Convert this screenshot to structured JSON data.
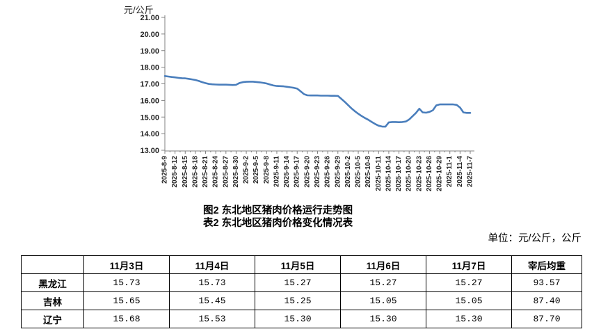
{
  "titles": {
    "figure": "图2  东北地区猪肉价格运行走势图",
    "table": "表2  东北地区猪肉价格变化情况表",
    "unit_note": "单位：元/公斤，公斤"
  },
  "colors": {
    "line": "#4a7ebc",
    "axis": "#808080",
    "text": "#262626",
    "table_border": "#000000"
  },
  "chart_data": {
    "type": "line",
    "title": "",
    "ylabel": "元/公斤",
    "ylim": [
      13,
      21
    ],
    "ytick_step": 1,
    "xtick_every": 3,
    "grid": false,
    "legend": null,
    "x": [
      "2025-8-9",
      "2025-8-10",
      "2025-8-11",
      "2025-8-12",
      "2025-8-13",
      "2025-8-14",
      "2025-8-15",
      "2025-8-16",
      "2025-8-17",
      "2025-8-18",
      "2025-8-19",
      "2025-8-20",
      "2025-8-21",
      "2025-8-22",
      "2025-8-23",
      "2025-8-24",
      "2025-8-25",
      "2025-8-26",
      "2025-8-27",
      "2025-8-28",
      "2025-8-29",
      "2025-8-30",
      "2025-8-31",
      "2025-9-1",
      "2025-9-2",
      "2025-9-3",
      "2025-9-4",
      "2025-9-5",
      "2025-9-6",
      "2025-9-7",
      "2025-9-8",
      "2025-9-9",
      "2025-9-10",
      "2025-9-11",
      "2025-9-12",
      "2025-9-13",
      "2025-9-14",
      "2025-9-15",
      "2025-9-16",
      "2025-9-17",
      "2025-9-18",
      "2025-9-19",
      "2025-9-20",
      "2025-9-21",
      "2025-9-22",
      "2025-9-23",
      "2025-9-24",
      "2025-9-25",
      "2025-9-26",
      "2025-9-27",
      "2025-9-28",
      "2025-9-29",
      "2025-9-30",
      "2025-10-1",
      "2025-10-2",
      "2025-10-3",
      "2025-10-4",
      "2025-10-5",
      "2025-10-6",
      "2025-10-7",
      "2025-10-8",
      "2025-10-9",
      "2025-10-10",
      "2025-10-11",
      "2025-10-12",
      "2025-10-13",
      "2025-10-14",
      "2025-10-15",
      "2025-10-16",
      "2025-10-17",
      "2025-10-18",
      "2025-10-19",
      "2025-10-20",
      "2025-10-21",
      "2025-10-22",
      "2025-10-23",
      "2025-10-24",
      "2025-10-25",
      "2025-10-26",
      "2025-10-27",
      "2025-10-28",
      "2025-10-29",
      "2025-10-30",
      "2025-10-31",
      "2025-11-1",
      "2025-11-2",
      "2025-11-3",
      "2025-11-4",
      "2025-11-5",
      "2025-11-6",
      "2025-11-7"
    ],
    "values": [
      17.47,
      17.44,
      17.41,
      17.39,
      17.36,
      17.34,
      17.33,
      17.3,
      17.27,
      17.23,
      17.17,
      17.1,
      17.04,
      16.99,
      16.97,
      16.96,
      16.95,
      16.95,
      16.95,
      16.94,
      16.93,
      16.94,
      17.05,
      17.1,
      17.12,
      17.13,
      17.13,
      17.11,
      17.09,
      17.06,
      17.02,
      16.96,
      16.9,
      16.87,
      16.86,
      16.85,
      16.82,
      16.79,
      16.76,
      16.71,
      16.55,
      16.38,
      16.31,
      16.3,
      16.3,
      16.3,
      16.29,
      16.29,
      16.29,
      16.28,
      16.28,
      16.27,
      16.1,
      15.92,
      15.72,
      15.52,
      15.35,
      15.2,
      15.06,
      14.94,
      14.83,
      14.7,
      14.58,
      14.48,
      14.43,
      14.42,
      14.68,
      14.7,
      14.7,
      14.69,
      14.7,
      14.73,
      14.85,
      15.05,
      15.25,
      15.5,
      15.28,
      15.26,
      15.31,
      15.41,
      15.7,
      15.76,
      15.76,
      15.76,
      15.76,
      15.76,
      15.73,
      15.57,
      15.28,
      15.25,
      15.25
    ]
  },
  "table": {
    "columns": [
      "",
      "11月3日",
      "11月4日",
      "11月5日",
      "11月6日",
      "11月7日",
      "宰后均重"
    ],
    "rows": [
      {
        "label": "黑龙江",
        "values": [
          "15.73",
          "15.73",
          "15.27",
          "15.27",
          "15.27",
          "93.57"
        ]
      },
      {
        "label": "吉林",
        "values": [
          "15.65",
          "15.45",
          "15.25",
          "15.05",
          "15.05",
          "87.40"
        ]
      },
      {
        "label": "辽宁",
        "values": [
          "15.68",
          "15.53",
          "15.30",
          "15.30",
          "15.30",
          "87.70"
        ]
      }
    ]
  }
}
